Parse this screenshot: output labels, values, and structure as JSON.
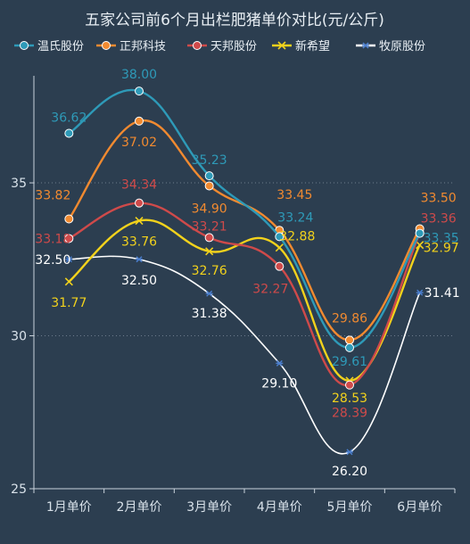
{
  "chart_data": {
    "type": "line",
    "title": "五家公司前6个月出栏肥猪单价对比(元/公斤)",
    "categories": [
      "1月单价",
      "2月单价",
      "3月单价",
      "4月单价",
      "5月单价",
      "6月单价"
    ],
    "yticks": [
      25,
      30,
      35
    ],
    "ylim": [
      25,
      38.5
    ],
    "grid": "dotted horizontal",
    "legend_position": "top",
    "series": [
      {
        "name": "温氏股份",
        "color": "#2e9ab8",
        "marker": "circle",
        "values": [
          36.62,
          38.0,
          35.23,
          33.24,
          29.61,
          33.35
        ],
        "labels": [
          "36.62",
          "38.00",
          "35.23",
          "33.24",
          "29.61",
          "33.35"
        ]
      },
      {
        "name": "正邦科技",
        "color": "#f18a30",
        "marker": "circle",
        "values": [
          33.82,
          37.02,
          34.9,
          33.45,
          29.86,
          33.5
        ],
        "labels": [
          "33.82",
          "37.02",
          "34.90",
          "33.45",
          "29.86",
          "33.50"
        ]
      },
      {
        "name": "天邦股份",
        "color": "#cf4a4a",
        "marker": "circle",
        "values": [
          33.18,
          34.34,
          33.21,
          32.27,
          28.39,
          33.36
        ],
        "labels": [
          "33.18",
          "34.34",
          "33.21",
          "32.27",
          "28.39",
          "33.36"
        ]
      },
      {
        "name": "新希望",
        "color": "#f2d21c",
        "marker": "x",
        "values": [
          31.77,
          33.76,
          32.76,
          32.88,
          28.53,
          32.97
        ],
        "labels": [
          "31.77",
          "33.76",
          "32.76",
          "32.88",
          "28.53",
          "32.97"
        ]
      },
      {
        "name": "牧原股份",
        "color": "#ffffff",
        "marker": "star",
        "values": [
          32.5,
          32.5,
          31.38,
          29.1,
          26.2,
          31.41
        ],
        "labels": [
          "32.50",
          "32.50",
          "31.38",
          "29.10",
          "26.20",
          "31.41"
        ]
      }
    ]
  }
}
